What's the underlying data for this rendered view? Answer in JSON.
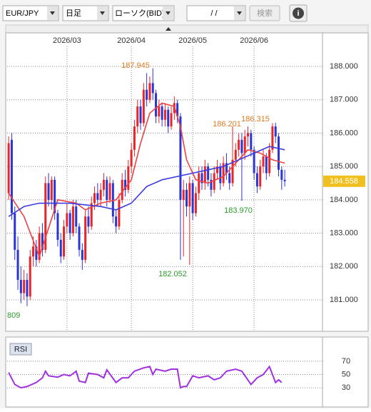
{
  "toolbar": {
    "pair": "EUR/JPY",
    "period": "日足",
    "chart_type": "ローソク(BID)",
    "date": "/ /",
    "search": "検索",
    "info": "i"
  },
  "chart_data": [
    {
      "type": "candlestick",
      "up_color": "#e8262a",
      "down_color": "#2b35d4",
      "xlim": [
        -0.5,
        102.3
      ],
      "ylim": [
        180.1,
        188.6
      ],
      "xticks": [
        {
          "value": 19,
          "label": "2026/03"
        },
        {
          "value": 40,
          "label": "2026/04"
        },
        {
          "value": 60,
          "label": "2026/05"
        },
        {
          "value": 80,
          "label": "2026/06"
        }
      ],
      "yticks": [
        {
          "value": 188,
          "label": "188.000"
        },
        {
          "value": 187,
          "label": "187.000"
        },
        {
          "value": 186,
          "label": "186.000"
        },
        {
          "value": 185,
          "label": "185.000"
        },
        {
          "value": 184,
          "label": "184.000"
        },
        {
          "value": 183,
          "label": "183.000"
        },
        {
          "value": 182,
          "label": "182.000"
        },
        {
          "value": 181,
          "label": "181.000"
        }
      ],
      "grid": true,
      "current_price": 184.558,
      "current_price_color": "#f0c020",
      "annotations": [
        "187.945",
        "186.201",
        "186.315",
        "182.052",
        "183.970",
        "809"
      ],
      "candles": [
        [
          184.2,
          185.9,
          184.0,
          185.7
        ],
        [
          185.8,
          186.0,
          183.4,
          183.6
        ],
        [
          183.6,
          183.8,
          182.2,
          182.5
        ],
        [
          182.5,
          182.9,
          181.3,
          181.6
        ],
        [
          181.6,
          182.0,
          180.9,
          181.2
        ],
        [
          181.2,
          181.9,
          181.0,
          181.6
        ],
        [
          181.6,
          181.8,
          180.809,
          181.1
        ],
        [
          181.1,
          182.5,
          181.0,
          182.3
        ],
        [
          182.3,
          182.9,
          182.0,
          182.6
        ],
        [
          182.6,
          182.8,
          182.0,
          182.2
        ],
        [
          182.2,
          183.2,
          182.1,
          183.0
        ],
        [
          183.0,
          183.3,
          182.3,
          182.5
        ],
        [
          182.5,
          184.7,
          182.4,
          184.5
        ],
        [
          184.5,
          184.8,
          183.8,
          184.0
        ],
        [
          184.0,
          184.7,
          183.7,
          184.6
        ],
        [
          184.6,
          184.7,
          183.4,
          183.6
        ],
        [
          183.6,
          183.7,
          182.6,
          182.8
        ],
        [
          182.8,
          183.0,
          182.1,
          182.3
        ],
        [
          182.3,
          183.4,
          182.2,
          183.2
        ],
        [
          183.2,
          183.9,
          183.0,
          183.6
        ],
        [
          183.6,
          183.7,
          182.8,
          183.0
        ],
        [
          183.0,
          184.0,
          182.9,
          183.8
        ],
        [
          183.8,
          184.0,
          183.0,
          183.2
        ],
        [
          183.2,
          183.3,
          182.3,
          182.5
        ],
        [
          182.5,
          182.7,
          181.9,
          182.2
        ],
        [
          182.2,
          183.7,
          182.1,
          183.5
        ],
        [
          183.5,
          183.8,
          183.0,
          183.2
        ],
        [
          183.2,
          184.1,
          183.1,
          183.9
        ],
        [
          183.9,
          184.4,
          183.7,
          184.2
        ],
        [
          184.2,
          184.5,
          183.8,
          184.0
        ],
        [
          184.0,
          184.5,
          183.8,
          184.3
        ],
        [
          184.3,
          184.8,
          184.1,
          184.6
        ],
        [
          184.6,
          184.7,
          183.8,
          184.0
        ],
        [
          184.0,
          184.7,
          183.9,
          184.5
        ],
        [
          184.5,
          184.6,
          183.3,
          183.5
        ],
        [
          183.5,
          183.7,
          183.0,
          183.2
        ],
        [
          183.2,
          184.2,
          183.1,
          184.0
        ],
        [
          184.0,
          184.8,
          183.9,
          184.6
        ],
        [
          184.6,
          184.9,
          184.1,
          184.3
        ],
        [
          184.3,
          185.2,
          184.2,
          185.0
        ],
        [
          185.0,
          185.7,
          184.8,
          185.5
        ],
        [
          185.5,
          186.4,
          185.3,
          186.2
        ],
        [
          186.2,
          187.0,
          186.0,
          186.8
        ],
        [
          186.8,
          187.0,
          186.1,
          186.3
        ],
        [
          186.3,
          187.5,
          186.2,
          187.3
        ],
        [
          187.3,
          187.8,
          186.8,
          187.0
        ],
        [
          187.0,
          187.7,
          186.9,
          187.5
        ],
        [
          187.5,
          187.945,
          187.0,
          187.2
        ],
        [
          187.2,
          187.3,
          186.3,
          186.5
        ],
        [
          186.5,
          187.0,
          186.3,
          186.8
        ],
        [
          186.8,
          186.9,
          186.2,
          186.4
        ],
        [
          186.4,
          186.9,
          186.2,
          186.7
        ],
        [
          186.7,
          186.8,
          186.0,
          186.2
        ],
        [
          186.2,
          186.8,
          186.1,
          186.6
        ],
        [
          186.6,
          187.1,
          186.4,
          186.9
        ],
        [
          186.9,
          187.0,
          186.3,
          186.5
        ],
        [
          186.5,
          186.6,
          182.2,
          184.0
        ],
        [
          184.0,
          184.6,
          182.3,
          184.3
        ],
        [
          184.3,
          184.5,
          183.5,
          183.8
        ],
        [
          183.8,
          184.7,
          182.052,
          184.5
        ],
        [
          184.5,
          184.6,
          183.4,
          183.6
        ],
        [
          183.6,
          184.4,
          183.5,
          184.2
        ],
        [
          184.2,
          185.0,
          184.0,
          184.8
        ],
        [
          184.8,
          185.0,
          184.3,
          184.5
        ],
        [
          184.5,
          185.2,
          184.3,
          185.0
        ],
        [
          185.0,
          185.1,
          184.4,
          184.6
        ],
        [
          184.6,
          184.8,
          184.1,
          184.3
        ],
        [
          184.3,
          185.0,
          184.2,
          184.8
        ],
        [
          184.8,
          185.2,
          184.6,
          185.0
        ],
        [
          185.0,
          185.1,
          184.3,
          184.5
        ],
        [
          184.5,
          185.3,
          184.4,
          185.1
        ],
        [
          185.1,
          185.4,
          184.6,
          184.8
        ],
        [
          184.8,
          185.0,
          184.3,
          184.5
        ],
        [
          184.5,
          186.201,
          184.4,
          185.2
        ],
        [
          185.2,
          185.7,
          185.0,
          185.5
        ],
        [
          185.5,
          186.0,
          185.3,
          185.8
        ],
        [
          185.8,
          186.0,
          183.97,
          185.4
        ],
        [
          185.4,
          186.1,
          185.2,
          185.9
        ],
        [
          185.9,
          186.2,
          185.6,
          186.0
        ],
        [
          186.0,
          186.1,
          185.3,
          185.5
        ],
        [
          185.5,
          185.6,
          184.6,
          184.8
        ],
        [
          184.8,
          185.0,
          184.2,
          184.4
        ],
        [
          184.4,
          185.2,
          184.3,
          185.0
        ],
        [
          185.0,
          185.5,
          184.8,
          185.3
        ],
        [
          185.3,
          185.4,
          184.6,
          184.8
        ],
        [
          184.8,
          185.7,
          184.7,
          185.5
        ],
        [
          185.5,
          186.3,
          185.4,
          186.2
        ],
        [
          186.2,
          186.315,
          185.7,
          185.9
        ],
        [
          185.9,
          186.0,
          184.7,
          184.9
        ],
        [
          184.9,
          185.0,
          184.3,
          184.6
        ],
        [
          184.6,
          184.9,
          184.4,
          184.558
        ]
      ],
      "series": [
        {
          "color": "#f04040",
          "x": [
            0,
            5,
            10,
            16,
            22,
            25,
            30,
            35,
            40,
            43,
            46,
            50,
            54,
            56,
            58,
            61,
            65,
            70,
            74,
            78,
            82,
            86,
            90
          ],
          "values": [
            184.2,
            183.5,
            182.3,
            184.0,
            183.9,
            183.7,
            183.9,
            184.0,
            184.6,
            185.7,
            186.6,
            186.9,
            186.8,
            186.2,
            185.2,
            184.6,
            184.5,
            184.7,
            185.1,
            185.5,
            185.4,
            185.2,
            185.1
          ]
        },
        {
          "color": "#3a3ae0",
          "x": [
            0,
            5,
            10,
            20,
            30,
            35,
            40,
            45,
            50,
            55,
            60,
            65,
            70,
            75,
            80,
            85,
            90
          ],
          "values": [
            183.5,
            183.8,
            183.9,
            183.9,
            183.8,
            183.7,
            183.9,
            184.4,
            184.6,
            184.7,
            184.8,
            184.9,
            185.0,
            185.2,
            185.4,
            185.6,
            185.5
          ]
        }
      ]
    },
    {
      "type": "line",
      "xlim": [
        -0.5,
        102.3
      ],
      "ylim": [
        0,
        100
      ],
      "yticks": [
        70,
        50,
        30
      ],
      "grid": true,
      "series": [
        {
          "name": "RSI",
          "color": "#a030e0",
          "x": [
            0,
            2,
            4,
            6,
            9,
            11,
            12,
            13,
            16,
            18,
            20,
            22,
            23,
            25,
            26,
            29,
            31,
            32,
            35,
            37,
            39,
            41,
            44,
            46,
            47,
            48,
            51,
            53,
            55,
            56,
            57,
            58,
            60,
            62,
            65,
            67,
            69,
            71,
            74,
            76,
            79,
            81,
            83,
            85,
            87,
            88,
            89
          ],
          "values": [
            53,
            35,
            30,
            32,
            38,
            45,
            55,
            48,
            46,
            50,
            48,
            55,
            40,
            38,
            52,
            50,
            45,
            57,
            38,
            45,
            45,
            55,
            60,
            62,
            50,
            58,
            55,
            58,
            58,
            30,
            32,
            32,
            48,
            45,
            48,
            42,
            45,
            55,
            58,
            55,
            35,
            45,
            50,
            62,
            38,
            42,
            38
          ]
        }
      ]
    }
  ]
}
